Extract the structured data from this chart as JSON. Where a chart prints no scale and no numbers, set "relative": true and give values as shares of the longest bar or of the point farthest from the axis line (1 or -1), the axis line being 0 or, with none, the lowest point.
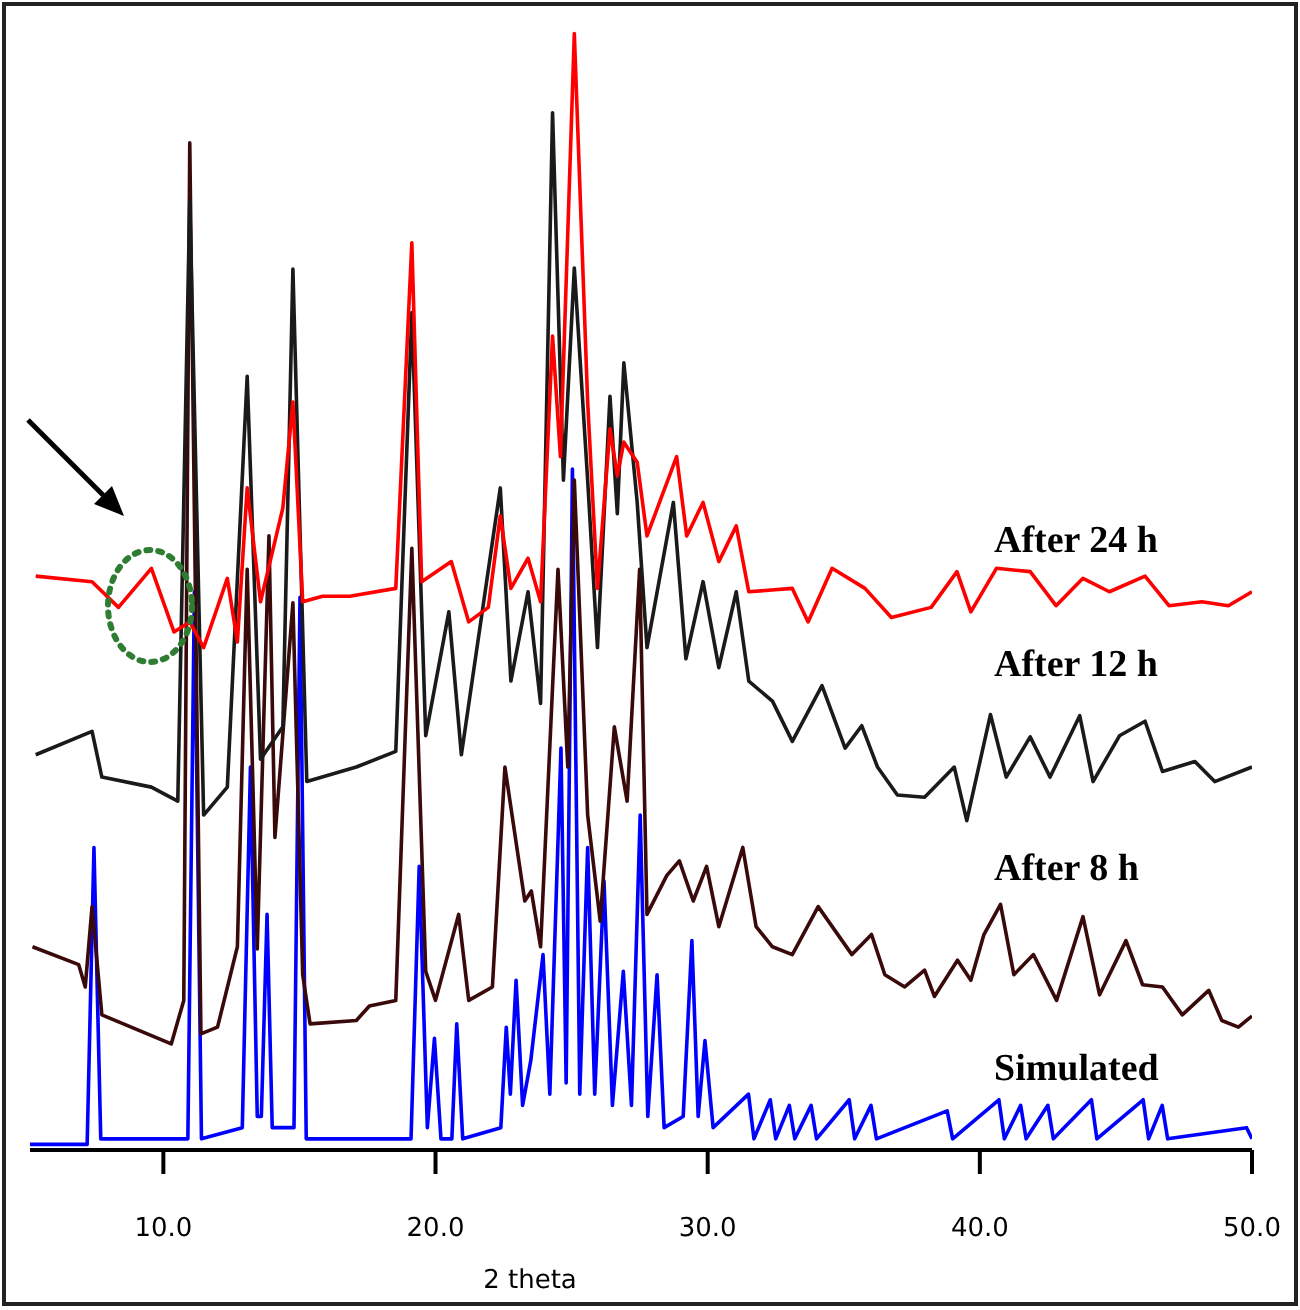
{
  "chart_data": {
    "type": "line",
    "relative": true,
    "xlabel": "2 theta",
    "xlim": [
      5.1,
      50
    ],
    "xticks": [
      {
        "value": 10,
        "label": "10.0"
      },
      {
        "value": 20,
        "label": "20.0"
      },
      {
        "value": 30,
        "label": "30.0"
      },
      {
        "value": 40,
        "label": "40.0"
      },
      {
        "value": 50,
        "label": "50.0"
      }
    ],
    "series": [
      {
        "name": "After 24 h",
        "color": "#ff0000",
        "x": [
          5.31,
          7.38,
          8.35,
          9.56,
          10.39,
          10.97,
          11.48,
          12.35,
          12.72,
          13.08,
          13.57,
          14.39,
          14.76,
          15.12,
          15.85,
          16.85,
          18.54,
          19.13,
          19.49,
          20.58,
          21.22,
          21.94,
          22.38,
          22.77,
          23.4,
          23.86,
          24.3,
          24.59,
          25.1,
          25.59,
          25.95,
          26.41,
          26.68,
          26.92,
          27.41,
          27.77,
          28.23,
          28.86,
          29.23,
          29.83,
          30.41,
          31.05,
          31.51,
          33.11,
          33.69,
          34.57,
          35.78,
          36.75,
          38.21,
          39.16,
          39.67,
          40.61,
          41.85,
          42.8,
          43.79,
          44.76,
          46.07,
          46.95,
          48.16,
          49.13,
          50.0
        ],
        "values": [
          0.514,
          0.509,
          0.486,
          0.521,
          0.464,
          0.473,
          0.45,
          0.512,
          0.455,
          0.593,
          0.491,
          0.575,
          0.67,
          0.491,
          0.496,
          0.496,
          0.503,
          0.8125,
          0.509,
          0.527,
          0.473,
          0.486,
          0.568,
          0.503,
          0.53,
          0.491,
          0.729,
          0.621,
          1.0,
          0.67,
          0.503,
          0.646,
          0.604,
          0.634,
          0.616,
          0.55,
          0.58,
          0.621,
          0.55,
          0.58,
          0.527,
          0.559,
          0.5,
          0.503,
          0.473,
          0.521,
          0.503,
          0.477,
          0.486,
          0.518,
          0.482,
          0.521,
          0.518,
          0.4875,
          0.512,
          0.5,
          0.514,
          0.4875,
          0.491,
          0.4875,
          0.5
        ]
      },
      {
        "name": "After 12 h",
        "color": "#1a1a1a",
        "x": [
          5.31,
          7.38,
          7.74,
          9.56,
          10.53,
          10.97,
          11.48,
          12.35,
          13.08,
          13.57,
          14.39,
          14.76,
          15.27,
          17.09,
          18.54,
          19.13,
          19.64,
          20.49,
          20.95,
          22.38,
          22.77,
          23.4,
          23.86,
          24.3,
          24.7,
          25.1,
          25.59,
          25.95,
          26.41,
          26.68,
          26.92,
          27.41,
          27.77,
          28.74,
          29.2,
          29.83,
          30.41,
          31.05,
          31.51,
          32.38,
          33.11,
          34.2,
          35.05,
          35.66,
          36.24,
          36.97,
          37.97,
          39.06,
          39.52,
          40.39,
          40.97,
          41.85,
          42.58,
          43.67,
          44.16,
          45.13,
          46.07,
          46.71,
          47.9,
          48.63,
          50.0
        ],
        "values": [
          0.354,
          0.375,
          0.334,
          0.325,
          0.3125,
          0.85,
          0.3,
          0.325,
          0.693,
          0.35,
          0.379,
          0.789,
          0.33,
          0.343,
          0.357,
          0.75,
          0.371,
          0.482,
          0.354,
          0.593,
          0.42,
          0.5,
          0.4,
          0.929,
          0.6,
          0.79,
          0.6,
          0.45,
          0.675,
          0.57,
          0.705,
          0.58,
          0.45,
          0.58,
          0.44,
          0.509,
          0.432,
          0.5,
          0.42,
          0.402,
          0.366,
          0.416,
          0.36,
          0.38,
          0.343,
          0.318,
          0.316,
          0.343,
          0.295,
          0.39,
          0.334,
          0.37,
          0.334,
          0.389,
          0.33,
          0.371,
          0.384,
          0.339,
          0.348,
          0.33,
          0.343
        ]
      },
      {
        "name": "After 8 h",
        "color": "#3a0a0a",
        "x": [
          5.19,
          6.89,
          7.13,
          7.38,
          7.74,
          10.29,
          10.75,
          10.97,
          11.38,
          11.99,
          12.72,
          13.08,
          13.45,
          13.88,
          14.1,
          14.76,
          15.12,
          15.39,
          17.09,
          17.57,
          18.54,
          19.13,
          19.64,
          20.0,
          20.85,
          21.22,
          22.09,
          22.55,
          23.28,
          23.52,
          23.86,
          24.5,
          24.86,
          25.1,
          25.59,
          26.05,
          26.57,
          27.04,
          27.5,
          27.77,
          28.5,
          28.96,
          29.47,
          29.96,
          30.41,
          31.29,
          31.78,
          32.38,
          33.11,
          34.06,
          35.3,
          36.02,
          36.51,
          37.24,
          37.97,
          38.33,
          39.18,
          39.67,
          40.15,
          40.76,
          41.25,
          41.97,
          42.82,
          43.79,
          44.4,
          45.37,
          45.98,
          46.71,
          47.44,
          48.41,
          48.89,
          49.5,
          50.0
        ],
        "values": [
          0.182,
          0.166,
          0.146,
          0.218,
          0.121,
          0.095,
          0.134,
          0.902,
          0.104,
          0.11,
          0.182,
          0.52,
          0.18,
          0.55,
          0.28,
          0.49,
          0.157,
          0.113,
          0.116,
          0.129,
          0.134,
          0.539,
          0.16,
          0.134,
          0.211,
          0.134,
          0.146,
          0.343,
          0.223,
          0.232,
          0.182,
          0.52,
          0.343,
          0.6,
          0.3,
          0.205,
          0.379,
          0.3125,
          0.52,
          0.211,
          0.246,
          0.259,
          0.223,
          0.254,
          0.2,
          0.271,
          0.2,
          0.182,
          0.175,
          0.218,
          0.175,
          0.193,
          0.157,
          0.146,
          0.161,
          0.1375,
          0.17,
          0.152,
          0.193,
          0.22,
          0.157,
          0.175,
          0.134,
          0.209,
          0.139,
          0.1875,
          0.148,
          0.146,
          0.121,
          0.143,
          0.116,
          0.11,
          0.12
        ]
      },
      {
        "name": "Simulated",
        "color": "#0000ff",
        "x": [
          5.1,
          7.2,
          7.45,
          7.7,
          10.9,
          11.14,
          11.4,
          12.9,
          13.2,
          13.45,
          13.6,
          13.81,
          14.0,
          14.8,
          15.02,
          15.25,
          19.1,
          19.4,
          19.7,
          19.96,
          20.2,
          20.6,
          20.78,
          21.0,
          22.4,
          22.6,
          22.75,
          22.96,
          23.2,
          23.5,
          23.95,
          24.2,
          24.61,
          24.8,
          25.03,
          25.3,
          25.59,
          25.85,
          26.19,
          26.5,
          26.9,
          27.2,
          27.52,
          27.8,
          28.14,
          28.4,
          29.1,
          29.42,
          29.65,
          29.9,
          30.2,
          31.5,
          31.7,
          32.3,
          32.5,
          33.0,
          33.2,
          33.8,
          34.0,
          35.2,
          35.4,
          36.0,
          36.2,
          38.8,
          39.0,
          40.7,
          40.9,
          41.5,
          41.7,
          42.5,
          42.7,
          44.1,
          44.3,
          46.0,
          46.2,
          46.7,
          46.9,
          49.8,
          50
        ],
        "values": [
          0.005,
          0.005,
          0.271,
          0.01,
          0.01,
          0.5,
          0.01,
          0.02,
          0.343,
          0.03,
          0.03,
          0.211,
          0.02,
          0.02,
          0.495,
          0.01,
          0.01,
          0.254,
          0.02,
          0.1,
          0.01,
          0.01,
          0.113,
          0.01,
          0.02,
          0.11,
          0.05,
          0.152,
          0.04,
          0.08,
          0.175,
          0.05,
          0.36,
          0.06,
          0.61,
          0.05,
          0.271,
          0.05,
          0.241,
          0.04,
          0.16,
          0.04,
          0.3,
          0.03,
          0.157,
          0.02,
          0.03,
          0.1875,
          0.03,
          0.098,
          0.02,
          0.05,
          0.01,
          0.045,
          0.01,
          0.04,
          0.01,
          0.04,
          0.01,
          0.045,
          0.01,
          0.04,
          0.01,
          0.035,
          0.01,
          0.045,
          0.01,
          0.04,
          0.01,
          0.04,
          0.01,
          0.045,
          0.01,
          0.045,
          0.01,
          0.04,
          0.01,
          0.02,
          0.01
        ]
      }
    ]
  }
}
